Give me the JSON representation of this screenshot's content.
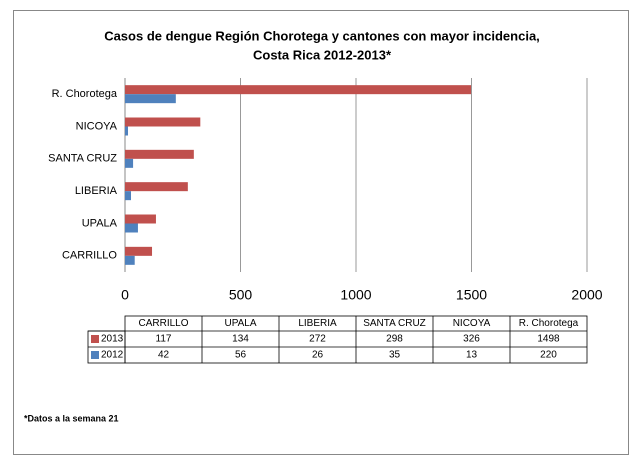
{
  "chart_data": {
    "type": "bar",
    "orientation": "horizontal",
    "title": [
      "Casos de dengue Región Chorotega y cantones con mayor incidencia,",
      "Costa Rica 2012-2013*"
    ],
    "categories": [
      "CARRILLO",
      "UPALA",
      "LIBERIA",
      "SANTA CRUZ",
      "NICOYA",
      "R. Chorotega"
    ],
    "series": [
      {
        "name": "2013",
        "color": "#c0504d",
        "values": [
          117,
          134,
          272,
          298,
          326,
          1498
        ]
      },
      {
        "name": "2012",
        "color": "#4f81bd",
        "values": [
          42,
          56,
          26,
          35,
          13,
          220
        ]
      }
    ],
    "xlim": [
      0,
      2000
    ],
    "xticks": [
      0,
      500,
      1000,
      1500,
      2000
    ],
    "grid": true,
    "footnote": "*Datos a la semana 21"
  }
}
